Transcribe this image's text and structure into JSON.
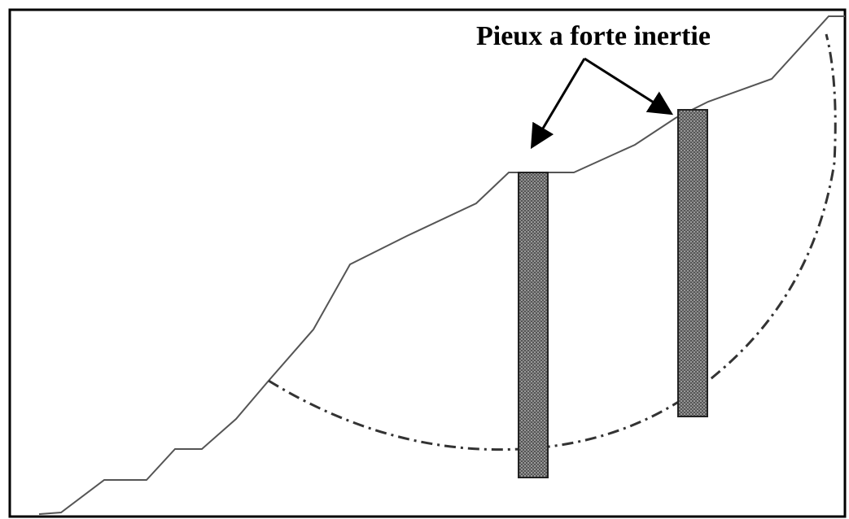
{
  "label": "Pieux a forte inertie"
}
